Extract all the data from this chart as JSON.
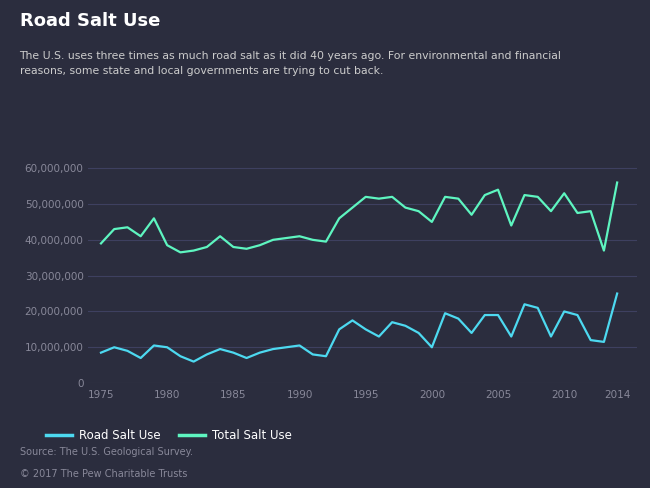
{
  "title": "Road Salt Use",
  "subtitle": "The U.S. uses three times as much road salt as it did 40 years ago. For environmental and financial\nreasons, some state and local governments are trying to cut back.",
  "source": "Source: The U.S. Geological Survey.",
  "copyright": "© 2017 The Pew Charitable Trusts",
  "background_color": "#2b2d3e",
  "text_color": "#ffffff",
  "subtitle_color": "#cccccc",
  "footer_color": "#888899",
  "grid_color": "#3e4060",
  "road_salt_color": "#4dd9f0",
  "total_salt_color": "#5ef5c0",
  "years": [
    1975,
    1976,
    1977,
    1978,
    1979,
    1980,
    1981,
    1982,
    1983,
    1984,
    1985,
    1986,
    1987,
    1988,
    1989,
    1990,
    1991,
    1992,
    1993,
    1994,
    1995,
    1996,
    1997,
    1998,
    1999,
    2000,
    2001,
    2002,
    2003,
    2004,
    2005,
    2006,
    2007,
    2008,
    2009,
    2010,
    2011,
    2012,
    2013,
    2014
  ],
  "road_salt": [
    8500000,
    10000000,
    9000000,
    7000000,
    10500000,
    10000000,
    7500000,
    6000000,
    8000000,
    9500000,
    8500000,
    7000000,
    8500000,
    9500000,
    10000000,
    10500000,
    8000000,
    7500000,
    15000000,
    17500000,
    15000000,
    13000000,
    17000000,
    16000000,
    14000000,
    10000000,
    19500000,
    18000000,
    14000000,
    19000000,
    19000000,
    13000000,
    22000000,
    21000000,
    13000000,
    20000000,
    19000000,
    12000000,
    11500000,
    25000000
  ],
  "total_salt": [
    39000000,
    43000000,
    43500000,
    41000000,
    46000000,
    38500000,
    36500000,
    37000000,
    38000000,
    41000000,
    38000000,
    37500000,
    38500000,
    40000000,
    40500000,
    41000000,
    40000000,
    39500000,
    46000000,
    49000000,
    52000000,
    51500000,
    52000000,
    49000000,
    48000000,
    45000000,
    52000000,
    51500000,
    47000000,
    52500000,
    54000000,
    44000000,
    52500000,
    52000000,
    48000000,
    53000000,
    47500000,
    48000000,
    37000000,
    56000000
  ],
  "ylim": [
    0,
    62000000
  ],
  "yticks": [
    0,
    10000000,
    20000000,
    30000000,
    40000000,
    50000000,
    60000000
  ],
  "xticks": [
    1975,
    1980,
    1985,
    1990,
    1995,
    2000,
    2005,
    2010,
    2014
  ],
  "xlim": [
    1974,
    2015.5
  ],
  "legend_road_salt": "Road Salt Use",
  "legend_total_salt": "Total Salt Use",
  "line_width": 1.6,
  "title_fontsize": 13,
  "subtitle_fontsize": 7.8,
  "tick_fontsize": 7.5,
  "footer_fontsize": 7.0,
  "legend_fontsize": 8.5
}
